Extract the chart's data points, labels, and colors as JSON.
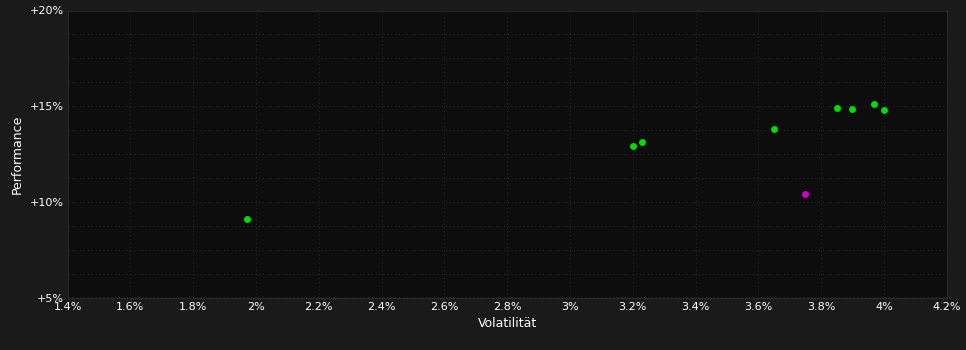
{
  "background_color": "#1a1a1a",
  "plot_bg_color": "#0d0d0d",
  "grid_color": "#2a2a2a",
  "text_color": "#ffffff",
  "xlabel": "Volatilität",
  "ylabel": "Performance",
  "xlim": [
    0.014,
    0.042
  ],
  "ylim": [
    0.05,
    0.2
  ],
  "xticks": [
    0.014,
    0.016,
    0.018,
    0.02,
    0.022,
    0.024,
    0.026,
    0.028,
    0.03,
    0.032,
    0.034,
    0.036,
    0.038,
    0.04,
    0.042
  ],
  "xtick_labels": [
    "1.4%",
    "1.6%",
    "1.8%",
    "2%",
    "2.2%",
    "2.4%",
    "2.6%",
    "2.8%",
    "3%",
    "3.2%",
    "3.4%",
    "3.6%",
    "3.8%",
    "4%",
    "4.2%"
  ],
  "yticks": [
    0.05,
    0.1,
    0.15,
    0.2
  ],
  "ytick_labels": [
    "+5%",
    "+10%",
    "+15%",
    "+20%"
  ],
  "minor_yticks": [
    0.05,
    0.0625,
    0.075,
    0.0875,
    0.1,
    0.1125,
    0.125,
    0.1375,
    0.15,
    0.1625,
    0.175,
    0.1875,
    0.2
  ],
  "green_points": [
    [
      0.0197,
      0.091
    ],
    [
      0.032,
      0.129
    ],
    [
      0.0323,
      0.1315
    ],
    [
      0.0365,
      0.138
    ],
    [
      0.0385,
      0.149
    ],
    [
      0.039,
      0.1485
    ],
    [
      0.0397,
      0.151
    ],
    [
      0.04,
      0.148
    ]
  ],
  "magenta_points": [
    [
      0.0375,
      0.104
    ]
  ],
  "point_size": 25,
  "dot_color_green": "#00dd00",
  "dot_color_magenta": "#cc00cc"
}
